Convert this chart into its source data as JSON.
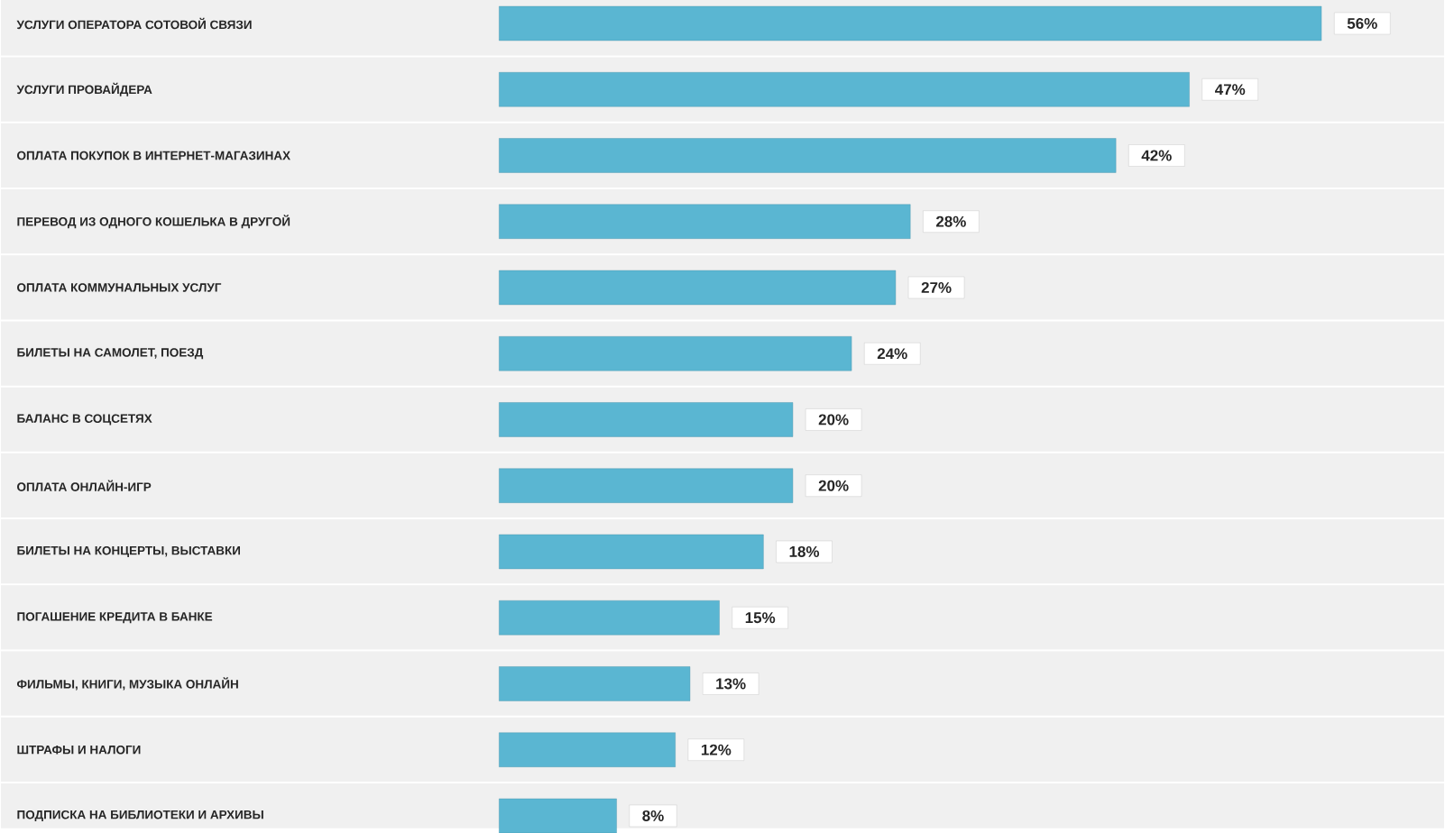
{
  "chart_data": {
    "type": "bar",
    "orientation": "horizontal",
    "categories": [
      "УСЛУГИ ОПЕРАТОРА СОТОВОЙ СВЯЗИ",
      "УСЛУГИ ПРОВАЙДЕРА",
      "ОПЛАТА ПОКУПОК В ИНТЕРНЕТ-МАГАЗИНАХ",
      "ПЕРЕВОД ИЗ ОДНОГО КОШЕЛЬКА В ДРУГОЙ",
      "ОПЛАТА КОММУНАЛЬНЫХ УСЛУГ",
      "БИЛЕТЫ НА САМОЛЕТ, ПОЕЗД",
      "БАЛАНС В СОЦСЕТЯХ",
      "ОПЛАТА ОНЛАЙН-ИГР",
      "БИЛЕТЫ НА КОНЦЕРТЫ, ВЫСТАВКИ",
      "ПОГАШЕНИЕ КРЕДИТА В БАНКЕ",
      "ФИЛЬМЫ, КНИГИ, МУЗЫКА ОНЛАЙН",
      "ШТРАФЫ И НАЛОГИ",
      "ПОДПИСКА НА БИБЛИОТЕКИ И АРХИВЫ"
    ],
    "values": [
      56,
      47,
      42,
      28,
      27,
      24,
      20,
      20,
      18,
      15,
      13,
      12,
      8
    ],
    "value_labels": [
      "56%",
      "47%",
      "42%",
      "28%",
      "27%",
      "24%",
      "20%",
      "20%",
      "18%",
      "15%",
      "13%",
      "12%",
      "8%"
    ],
    "color": "#5ab6d2"
  }
}
